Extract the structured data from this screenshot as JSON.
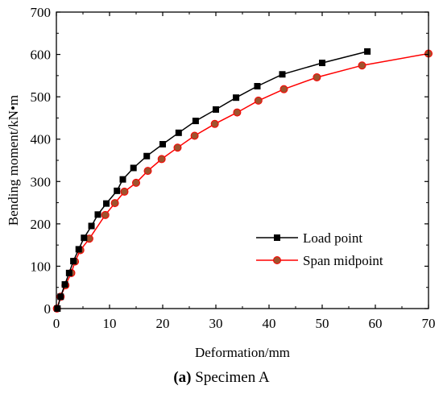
{
  "chart_data": {
    "type": "line",
    "xlabel": "Deformation/mm",
    "ylabel": "Bending moment/kN•m",
    "xlim": [
      0,
      70
    ],
    "ylim": [
      0,
      700
    ],
    "xticks": [
      "0",
      "10",
      "20",
      "30",
      "40",
      "50",
      "60",
      "70"
    ],
    "yticks": [
      "0",
      "100",
      "200",
      "300",
      "400",
      "500",
      "600",
      "700"
    ],
    "grid": false,
    "legend_position": "bottom-right",
    "caption": {
      "label": "(a)",
      "text": " Specimen A"
    },
    "series": [
      {
        "name": "Load point",
        "color": "#000000",
        "marker": "square",
        "points": [
          [
            0.2,
            0
          ],
          [
            0.8,
            28
          ],
          [
            1.6,
            57
          ],
          [
            2.4,
            84
          ],
          [
            3.2,
            112
          ],
          [
            4.2,
            140
          ],
          [
            5.2,
            167
          ],
          [
            6.6,
            195
          ],
          [
            7.8,
            222
          ],
          [
            9.4,
            248
          ],
          [
            11.4,
            278
          ],
          [
            12.5,
            305
          ],
          [
            14.5,
            332
          ],
          [
            17,
            360
          ],
          [
            20,
            388
          ],
          [
            23,
            415
          ],
          [
            26.2,
            443
          ],
          [
            30,
            470
          ],
          [
            33.8,
            498
          ],
          [
            37.8,
            525
          ],
          [
            42.5,
            553
          ],
          [
            50,
            580
          ],
          [
            58.5,
            607
          ]
        ]
      },
      {
        "name": "Span midpoint",
        "color": "#ff0000",
        "marker": "circle",
        "points": [
          [
            0.1,
            0
          ],
          [
            0.8,
            28
          ],
          [
            1.7,
            55
          ],
          [
            2.8,
            84
          ],
          [
            3.5,
            111
          ],
          [
            4.5,
            138
          ],
          [
            6.2,
            165
          ],
          [
            9.2,
            221
          ],
          [
            11,
            249
          ],
          [
            12.8,
            276
          ],
          [
            15,
            297
          ],
          [
            17.2,
            325
          ],
          [
            19.8,
            353
          ],
          [
            22.8,
            380
          ],
          [
            26,
            408
          ],
          [
            29.8,
            436
          ],
          [
            34,
            463
          ],
          [
            38,
            491
          ],
          [
            42.8,
            518
          ],
          [
            49,
            546
          ],
          [
            57.5,
            574
          ],
          [
            70,
            602
          ]
        ]
      }
    ]
  }
}
